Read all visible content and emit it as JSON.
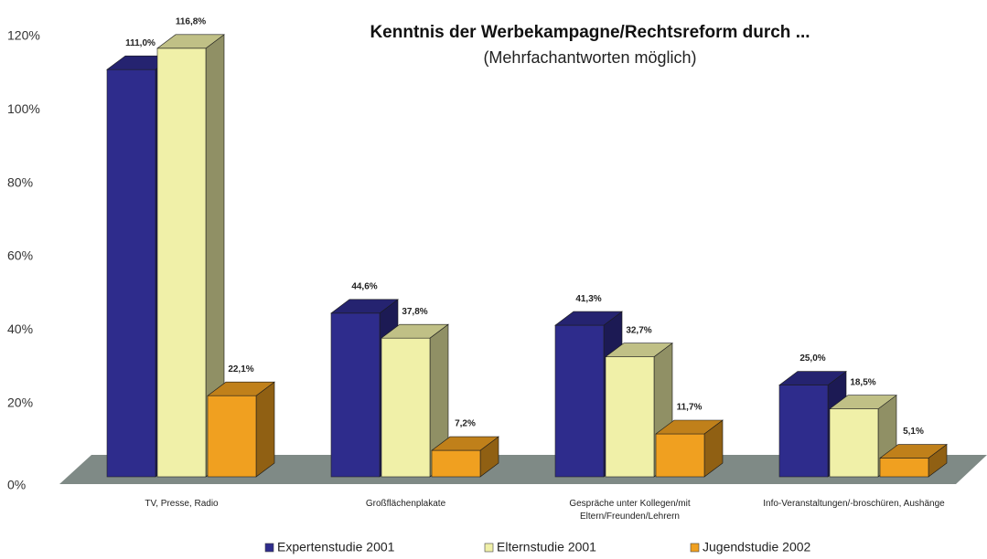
{
  "chart_data": {
    "type": "bar3d",
    "title": "Kenntnis der Werbekampagne/Rechtsreform durch ...",
    "subtitle": "(Mehrfachantworten möglich)",
    "categories": [
      "TV, Presse, Radio",
      "Großflächenplakate",
      "Gespräche unter Kollegen/mit Eltern/Freunden/Lehrern",
      "Info-Veranstaltungen/-broschüren, Aushänge"
    ],
    "series": [
      {
        "name": "Expertenstudie 2001",
        "color": "#2e2c8c",
        "values": [
          111.0,
          44.6,
          41.3,
          25.0
        ],
        "value_labels": [
          "111,0%",
          "44,6%",
          "41,3%",
          "25,0%"
        ]
      },
      {
        "name": "Elternstudie 2001",
        "color": "#f0f0a8",
        "values": [
          116.8,
          37.8,
          32.7,
          18.5
        ],
        "value_labels": [
          "116,8%",
          "37,8%",
          "32,7%",
          "18,5%"
        ]
      },
      {
        "name": "Jugendstudie 2002",
        "color": "#f0a020",
        "values": [
          22.1,
          7.2,
          11.7,
          5.1
        ],
        "value_labels": [
          "22,1%",
          "7,2%",
          "11,7%",
          "5,1%"
        ]
      }
    ],
    "ylim": [
      0,
      120
    ],
    "yticks": [
      {
        "value": 0,
        "label": "0%"
      },
      {
        "value": 20,
        "label": "20%"
      },
      {
        "value": 40,
        "label": "40%"
      },
      {
        "value": 60,
        "label": "60%"
      },
      {
        "value": 80,
        "label": "80%"
      },
      {
        "value": 100,
        "label": "100%"
      },
      {
        "value": 120,
        "label": "120%"
      }
    ],
    "legend": "bottom"
  }
}
